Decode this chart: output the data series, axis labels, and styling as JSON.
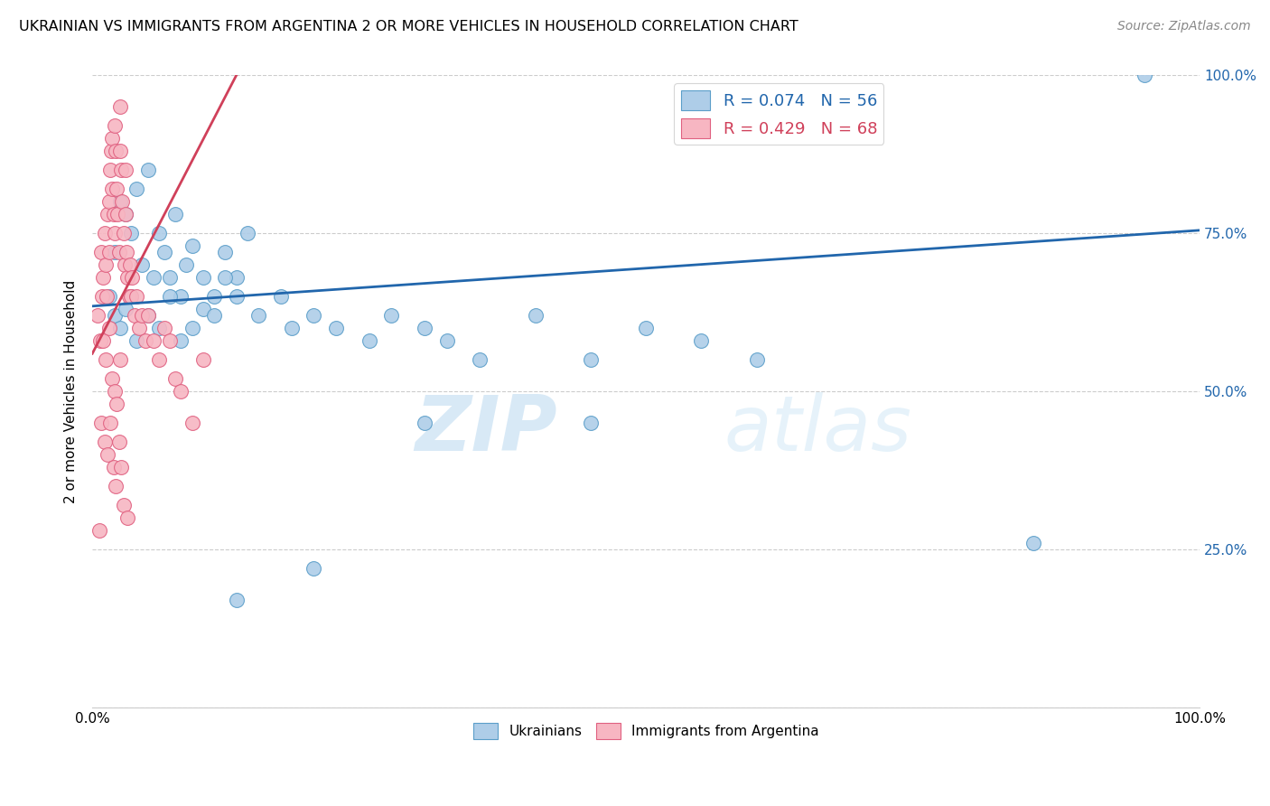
{
  "title": "UKRAINIAN VS IMMIGRANTS FROM ARGENTINA 2 OR MORE VEHICLES IN HOUSEHOLD CORRELATION CHART",
  "source": "Source: ZipAtlas.com",
  "ylabel": "2 or more Vehicles in Household",
  "legend_blue_r": "R = 0.074",
  "legend_blue_n": "N = 56",
  "legend_pink_r": "R = 0.429",
  "legend_pink_n": "N = 68",
  "blue_color": "#aecde8",
  "blue_edge_color": "#5b9ec9",
  "pink_color": "#f7b6c2",
  "pink_edge_color": "#e06080",
  "blue_line_color": "#2166ac",
  "pink_line_color": "#d0405a",
  "watermark_color": "#d0e8f5",
  "blue_x": [
    0.02,
    0.025,
    0.03,
    0.035,
    0.04,
    0.045,
    0.05,
    0.055,
    0.06,
    0.065,
    0.07,
    0.075,
    0.08,
    0.085,
    0.09,
    0.1,
    0.11,
    0.12,
    0.13,
    0.14,
    0.015,
    0.02,
    0.025,
    0.03,
    0.035,
    0.04,
    0.05,
    0.06,
    0.07,
    0.08,
    0.09,
    0.1,
    0.11,
    0.12,
    0.13,
    0.15,
    0.17,
    0.18,
    0.2,
    0.22,
    0.25,
    0.27,
    0.3,
    0.32,
    0.35,
    0.4,
    0.45,
    0.5,
    0.55,
    0.6,
    0.13,
    0.2,
    0.85,
    0.3,
    0.45,
    0.95
  ],
  "blue_y": [
    0.72,
    0.8,
    0.78,
    0.75,
    0.82,
    0.7,
    0.85,
    0.68,
    0.75,
    0.72,
    0.68,
    0.78,
    0.65,
    0.7,
    0.73,
    0.68,
    0.65,
    0.72,
    0.68,
    0.75,
    0.65,
    0.62,
    0.6,
    0.63,
    0.65,
    0.58,
    0.62,
    0.6,
    0.65,
    0.58,
    0.6,
    0.63,
    0.62,
    0.68,
    0.65,
    0.62,
    0.65,
    0.6,
    0.62,
    0.6,
    0.58,
    0.62,
    0.6,
    0.58,
    0.55,
    0.62,
    0.55,
    0.6,
    0.58,
    0.55,
    0.17,
    0.22,
    0.26,
    0.45,
    0.45,
    1.0
  ],
  "pink_x": [
    0.005,
    0.007,
    0.008,
    0.009,
    0.01,
    0.011,
    0.012,
    0.013,
    0.014,
    0.015,
    0.015,
    0.016,
    0.017,
    0.018,
    0.018,
    0.019,
    0.02,
    0.02,
    0.021,
    0.022,
    0.023,
    0.024,
    0.025,
    0.025,
    0.026,
    0.027,
    0.028,
    0.029,
    0.03,
    0.03,
    0.031,
    0.032,
    0.033,
    0.034,
    0.035,
    0.036,
    0.038,
    0.04,
    0.042,
    0.045,
    0.048,
    0.05,
    0.055,
    0.06,
    0.065,
    0.07,
    0.075,
    0.08,
    0.09,
    0.1,
    0.01,
    0.012,
    0.015,
    0.018,
    0.02,
    0.022,
    0.025,
    0.008,
    0.011,
    0.014,
    0.016,
    0.019,
    0.021,
    0.024,
    0.026,
    0.028,
    0.032,
    0.006
  ],
  "pink_y": [
    0.62,
    0.58,
    0.72,
    0.65,
    0.68,
    0.75,
    0.7,
    0.65,
    0.78,
    0.8,
    0.72,
    0.85,
    0.88,
    0.82,
    0.9,
    0.78,
    0.92,
    0.75,
    0.88,
    0.82,
    0.78,
    0.72,
    0.95,
    0.88,
    0.85,
    0.8,
    0.75,
    0.7,
    0.85,
    0.78,
    0.72,
    0.68,
    0.65,
    0.7,
    0.65,
    0.68,
    0.62,
    0.65,
    0.6,
    0.62,
    0.58,
    0.62,
    0.58,
    0.55,
    0.6,
    0.58,
    0.52,
    0.5,
    0.45,
    0.55,
    0.58,
    0.55,
    0.6,
    0.52,
    0.5,
    0.48,
    0.55,
    0.45,
    0.42,
    0.4,
    0.45,
    0.38,
    0.35,
    0.42,
    0.38,
    0.32,
    0.3,
    0.28
  ],
  "blue_trend_x": [
    0.0,
    1.0
  ],
  "blue_trend_y": [
    0.635,
    0.755
  ],
  "pink_trend_x": [
    0.0,
    0.13
  ],
  "pink_trend_y": [
    0.56,
    1.0
  ],
  "xlim": [
    0.0,
    1.0
  ],
  "ylim": [
    0.0,
    1.0
  ],
  "ytick_positions": [
    0.0,
    0.25,
    0.5,
    0.75,
    1.0
  ],
  "ytick_labels": [
    "",
    "25.0%",
    "50.0%",
    "75.0%",
    "100.0%"
  ],
  "xtick_positions": [
    0.0,
    0.1,
    0.2,
    0.3,
    0.4,
    0.5,
    0.6,
    0.7,
    0.8,
    0.9,
    1.0
  ],
  "xtick_labels": [
    "0.0%",
    "",
    "",
    "",
    "",
    "",
    "",
    "",
    "",
    "",
    "100.0%"
  ]
}
